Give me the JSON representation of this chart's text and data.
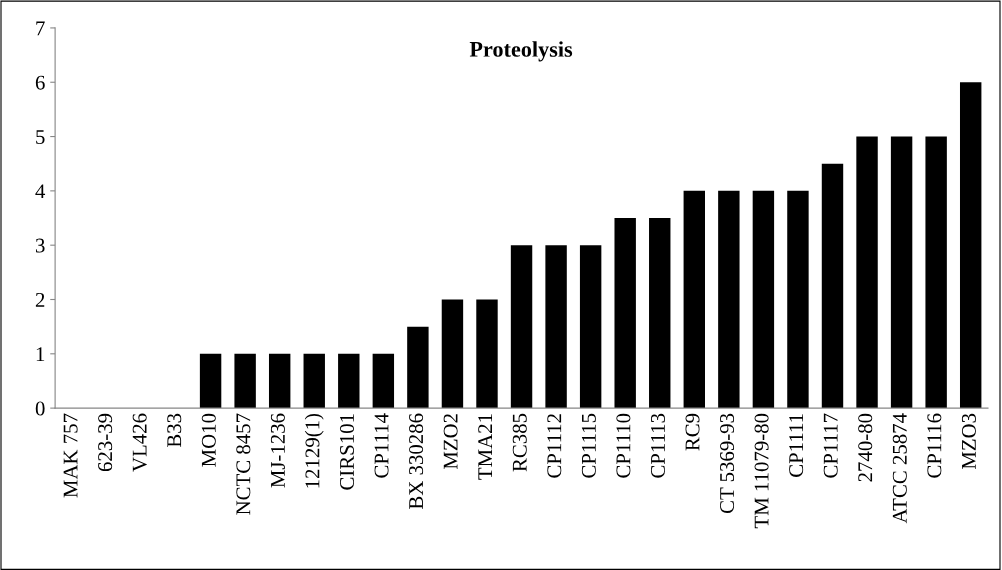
{
  "chart_data": {
    "type": "bar",
    "title": "Proteolysis",
    "categories": [
      "MAK 757",
      "623-39",
      "VL426",
      "B33",
      "MO10",
      "NCTC 8457",
      "MJ-1236",
      "12129(1)",
      "CIRS101",
      "CP1114",
      "BX 330286",
      "MZO2",
      "TMA21",
      "RC385",
      "CP1112",
      "CP1115",
      "CP1110",
      "CP1113",
      "RC9",
      "CT 5369-93",
      "TM 11079-80",
      "CP1111",
      "CP1117",
      "2740-80",
      "ATCC 25874",
      "CP1116",
      "MZO3"
    ],
    "values": [
      0,
      0,
      0,
      0,
      1,
      1,
      1,
      1,
      1,
      1,
      1.5,
      2,
      2,
      3,
      3,
      3,
      3.5,
      3.5,
      4,
      4,
      4,
      4,
      4.5,
      5,
      5,
      5,
      6
    ],
    "color": "#000000",
    "ylim": [
      0,
      7
    ],
    "yticks": [
      0,
      1,
      2,
      3,
      4,
      5,
      6,
      7
    ],
    "grid": false,
    "legend": false
  }
}
